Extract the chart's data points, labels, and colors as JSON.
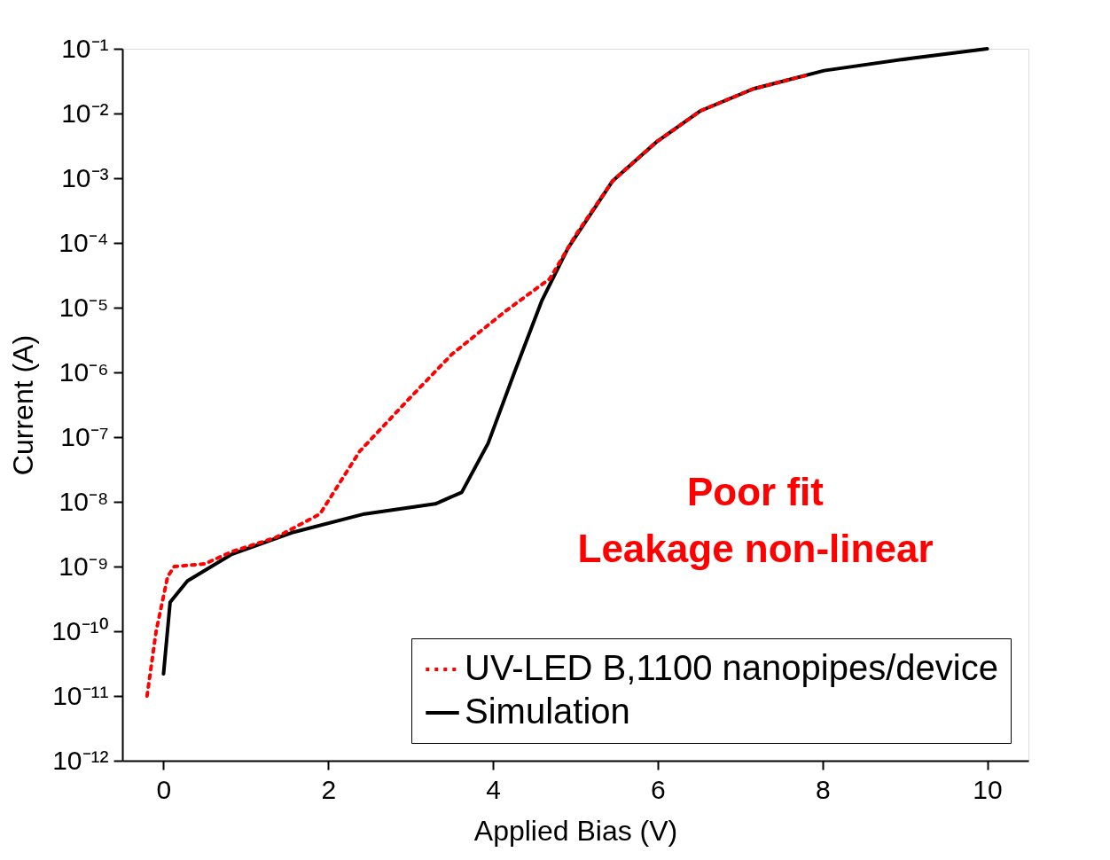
{
  "chart_data": {
    "type": "line",
    "xlabel": "Applied Bias (V)",
    "ylabel": "Current (A)",
    "log": "y",
    "xlim": [
      -0.5,
      10.5
    ],
    "xticks": [
      0,
      2,
      4,
      6,
      8,
      10
    ],
    "ylim": [
      1e-12,
      0.1
    ],
    "yticks": [
      {
        "value": 1e-12,
        "label": "10⁻¹²"
      },
      {
        "value": 1e-11,
        "label": "10⁻¹¹"
      },
      {
        "value": 1e-10,
        "label": "10⁻¹⁰"
      },
      {
        "value": 1e-09,
        "label": "10⁻⁹"
      },
      {
        "value": 1e-08,
        "label": "10⁻⁸"
      },
      {
        "value": 1e-07,
        "label": "10⁻⁷"
      },
      {
        "value": 1e-06,
        "label": "10⁻⁶"
      },
      {
        "value": 1e-05,
        "label": "10⁻⁵"
      },
      {
        "value": 0.0001,
        "label": "10⁻⁴"
      },
      {
        "value": 0.001,
        "label": "10⁻³"
      },
      {
        "value": 0.01,
        "label": "10⁻²"
      },
      {
        "value": 0.1,
        "label": "10⁻¹"
      }
    ],
    "grid": false,
    "legend": "bottom right",
    "marker": "none",
    "annotations": [
      "Poor fit",
      "Leakage non-linear"
    ],
    "series": [
      {
        "name": "UV-LED B,1100 nanopipes/device",
        "color": "#ff0000",
        "line_style": "dotted",
        "x": [
          -0.2,
          -0.09,
          0.05,
          0.13,
          0.5,
          0.83,
          1.36,
          1.9,
          2.38,
          2.98,
          3.5,
          4.16,
          4.69,
          5.0,
          5.45,
          5.98,
          6.52,
          7.16,
          7.81
        ],
        "values": [
          1e-11,
          1e-10,
          7e-10,
          1e-09,
          1.1e-09,
          1.7e-09,
          2.8e-09,
          6.5e-09,
          6e-08,
          3.9e-07,
          1.9e-06,
          9e-06,
          2.8e-05,
          0.00013,
          0.0009,
          0.0036,
          0.011,
          0.024,
          0.039
        ]
      },
      {
        "name": "Simulation",
        "color": "#000000",
        "line_style": "solid",
        "x": [
          0,
          0.08,
          0.29,
          0.83,
          1.58,
          2.44,
          3.3,
          3.62,
          3.94,
          4.26,
          4.59,
          4.91,
          5.45,
          5.98,
          6.52,
          7.16,
          8.02,
          9.1,
          10
        ],
        "values": [
          2.2e-11,
          2.8e-10,
          6e-10,
          1.55e-09,
          3.4e-09,
          6.5e-09,
          9.3e-09,
          1.4e-08,
          8e-08,
          1e-06,
          1.26e-05,
          8.3e-05,
          0.0009,
          0.0036,
          0.011,
          0.024,
          0.046,
          0.072,
          0.1
        ]
      }
    ]
  }
}
